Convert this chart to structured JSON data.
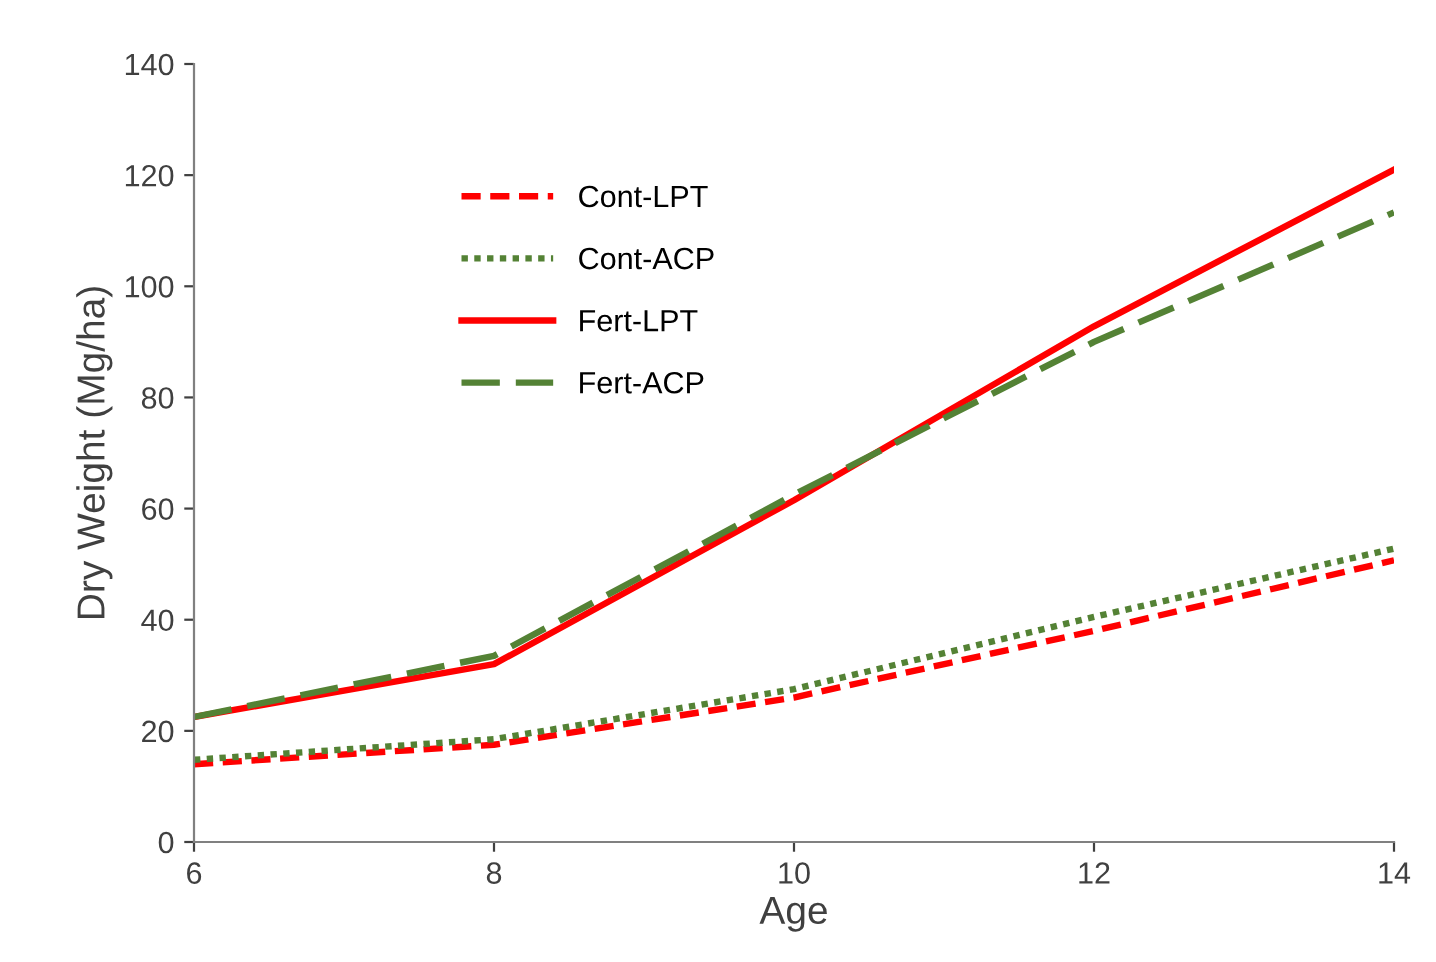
{
  "chart_data": {
    "type": "line",
    "xlabel": "Age",
    "ylabel": "Dry Weight (Mg/ha)",
    "x": [
      6,
      8,
      10,
      12,
      14
    ],
    "series": [
      {
        "name": "Cont-LPT",
        "color": "#ff0000",
        "line_style": "dashed",
        "values": [
          14,
          17.5,
          26,
          38,
          50.7
        ]
      },
      {
        "name": "Cont-ACP",
        "color": "#548235",
        "line_style": "dotted",
        "values": [
          14.8,
          18.5,
          27.5,
          40.5,
          52.8
        ]
      },
      {
        "name": "Fert-LPT",
        "color": "#ff0000",
        "line_style": "solid",
        "values": [
          22.5,
          32,
          61.5,
          92.8,
          121
        ]
      },
      {
        "name": "Fert-ACP",
        "color": "#548235",
        "line_style": "longdash",
        "values": [
          22.5,
          33.5,
          62.5,
          90,
          113.3
        ]
      }
    ],
    "xlim": [
      6,
      14
    ],
    "xticks": [
      6,
      8,
      10,
      12,
      14
    ],
    "ylim": [
      0,
      140
    ],
    "yticks": [
      0,
      20,
      40,
      60,
      80,
      100,
      120,
      140
    ],
    "grid": false,
    "legend": "top left",
    "marker": "none"
  }
}
